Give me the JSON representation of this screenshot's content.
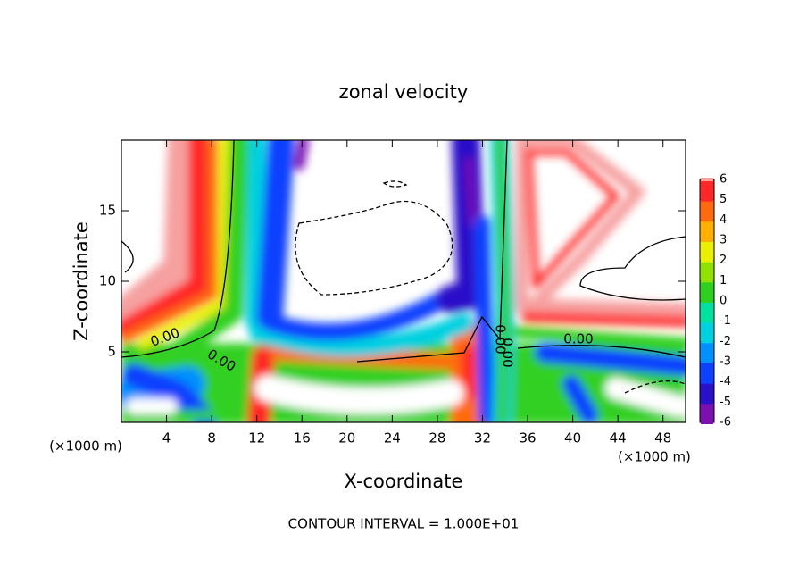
{
  "chart_data": {
    "type": "contour",
    "title": "zonal velocity",
    "xlabel": "X-coordinate",
    "ylabel": "Z-coordinate",
    "x_unit": "(×1000 m)",
    "y_unit": "(×1000 m)",
    "footer": "CONTOUR INTERVAL = 1.000E+01",
    "contour_labels": [
      "0.00",
      "0.00",
      "0.00",
      "0.00",
      "0.00"
    ],
    "xlim": [
      0,
      50
    ],
    "xticks": [
      4,
      8,
      12,
      16,
      20,
      24,
      28,
      32,
      36,
      40,
      44,
      48
    ],
    "ylim": [
      0,
      20
    ],
    "yticks": [
      5,
      10,
      15
    ],
    "colorbar": {
      "ticks": [
        -6,
        -5,
        -4,
        -3,
        -2,
        -1,
        0,
        1,
        2,
        3,
        4,
        5,
        6
      ],
      "colors": [
        "#7a10b0",
        "#2a10c8",
        "#1040ff",
        "#0090ff",
        "#00d0e0",
        "#00e0a0",
        "#30d020",
        "#90e000",
        "#e8f000",
        "#ffb000",
        "#ff6a10",
        "#ff2828",
        "#f6a0a0"
      ]
    }
  }
}
